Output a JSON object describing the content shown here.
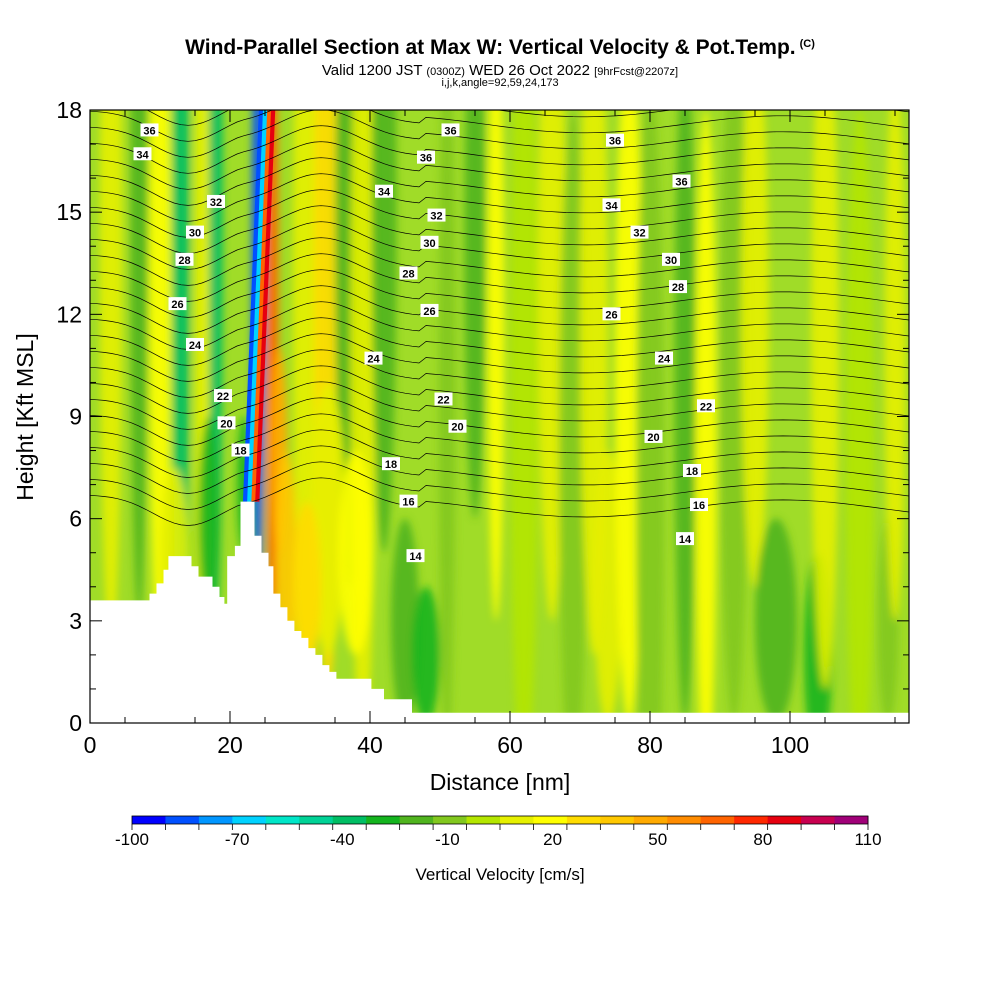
{
  "titles": {
    "main": "Wind-Parallel Section at Max W: Vertical Velocity & Pot.Temp.",
    "main_units": "(C)",
    "valid_prefix": "Valid 1200 JST",
    "valid_utc": "(0300Z)",
    "valid_date": "WED 26 Oct 2022",
    "forecast": "[9hrFcst@2207z]",
    "indices": "i,j,k,angle=92,59,24,173"
  },
  "chart_data": {
    "type": "heatmap",
    "xlabel": "Distance [nm]",
    "ylabel": "Height [Kft MSL]",
    "xlim": [
      0,
      117
    ],
    "ylim": [
      0,
      18
    ],
    "x_ticks": [
      0,
      20,
      40,
      60,
      80,
      100
    ],
    "y_ticks": [
      0,
      3,
      6,
      9,
      12,
      15,
      18
    ],
    "colorbar": {
      "label": "Vertical Velocity [cm/s]",
      "min": -100,
      "max": 110,
      "step": 10,
      "tick_labels": [
        -100,
        -70,
        -40,
        -10,
        20,
        50,
        80,
        110
      ],
      "colors": [
        "#0000ff",
        "#0050ff",
        "#0096ff",
        "#00d2ff",
        "#00e6c8",
        "#00d296",
        "#00be64",
        "#14b41e",
        "#50b41e",
        "#82c81e",
        "#b4e600",
        "#e6f000",
        "#ffff00",
        "#ffdc00",
        "#ffc800",
        "#ffaa00",
        "#ff8c00",
        "#ff6400",
        "#ff2800",
        "#e6000f",
        "#c80050",
        "#a00078"
      ]
    },
    "background_color": "#a0dc28",
    "terrain": [
      [
        0,
        3.6
      ],
      [
        8.5,
        3.6
      ],
      [
        8.5,
        3.8
      ],
      [
        9.5,
        3.8
      ],
      [
        9.5,
        4.1
      ],
      [
        10.5,
        4.1
      ],
      [
        10.5,
        4.5
      ],
      [
        11.2,
        4.5
      ],
      [
        11.2,
        4.9
      ],
      [
        14.5,
        4.9
      ],
      [
        14.5,
        4.6
      ],
      [
        15.5,
        4.6
      ],
      [
        15.5,
        4.3
      ],
      [
        17.5,
        4.3
      ],
      [
        17.5,
        4.0
      ],
      [
        18.5,
        4.0
      ],
      [
        18.5,
        3.7
      ],
      [
        19.2,
        3.7
      ],
      [
        19.2,
        3.5
      ],
      [
        19.6,
        3.5
      ],
      [
        19.6,
        4.9
      ],
      [
        20.7,
        4.9
      ],
      [
        20.7,
        5.2
      ],
      [
        21.5,
        5.2
      ],
      [
        21.5,
        6.5
      ],
      [
        23.5,
        6.5
      ],
      [
        23.5,
        5.5
      ],
      [
        24.5,
        5.5
      ],
      [
        24.5,
        5.0
      ],
      [
        25.5,
        5.0
      ],
      [
        25.5,
        4.6
      ],
      [
        26.2,
        4.6
      ],
      [
        26.2,
        3.8
      ],
      [
        27.2,
        3.8
      ],
      [
        27.2,
        3.4
      ],
      [
        28.2,
        3.4
      ],
      [
        28.2,
        3.0
      ],
      [
        29.2,
        3.0
      ],
      [
        29.2,
        2.7
      ],
      [
        30.2,
        2.7
      ],
      [
        30.2,
        2.5
      ],
      [
        31.2,
        2.5
      ],
      [
        31.2,
        2.2
      ],
      [
        32.2,
        2.2
      ],
      [
        32.2,
        2.0
      ],
      [
        33.2,
        2.0
      ],
      [
        33.2,
        1.7
      ],
      [
        34.2,
        1.7
      ],
      [
        34.2,
        1.5
      ],
      [
        35.2,
        1.5
      ],
      [
        35.2,
        1.3
      ],
      [
        40.2,
        1.3
      ],
      [
        40.2,
        1.0
      ],
      [
        42,
        1.0
      ],
      [
        42,
        0.7
      ],
      [
        46,
        0.7
      ],
      [
        46,
        0.3
      ],
      [
        117,
        0.3
      ],
      [
        117,
        0
      ],
      [
        0,
        0
      ]
    ],
    "theta_contour_labels": [
      {
        "x": 8.5,
        "y": 17.4,
        "label": "36"
      },
      {
        "x": 7.5,
        "y": 16.7,
        "label": "34"
      },
      {
        "x": 18,
        "y": 15.3,
        "label": "32"
      },
      {
        "x": 15,
        "y": 14.4,
        "label": "30"
      },
      {
        "x": 13.5,
        "y": 13.6,
        "label": "28"
      },
      {
        "x": 12.5,
        "y": 12.3,
        "label": "26"
      },
      {
        "x": 15,
        "y": 11.1,
        "label": "24"
      },
      {
        "x": 19,
        "y": 9.6,
        "label": "22"
      },
      {
        "x": 19.5,
        "y": 8.8,
        "label": "20"
      },
      {
        "x": 21.5,
        "y": 8.0,
        "label": "18"
      },
      {
        "x": 51.5,
        "y": 17.4,
        "label": "36"
      },
      {
        "x": 48,
        "y": 16.6,
        "label": "36"
      },
      {
        "x": 42,
        "y": 15.6,
        "label": "34"
      },
      {
        "x": 49.5,
        "y": 14.9,
        "label": "32"
      },
      {
        "x": 48.5,
        "y": 14.1,
        "label": "30"
      },
      {
        "x": 45.5,
        "y": 13.2,
        "label": "28"
      },
      {
        "x": 48.5,
        "y": 12.1,
        "label": "26"
      },
      {
        "x": 40.5,
        "y": 10.7,
        "label": "24"
      },
      {
        "x": 50.5,
        "y": 9.5,
        "label": "22"
      },
      {
        "x": 52.5,
        "y": 8.7,
        "label": "20"
      },
      {
        "x": 43,
        "y": 7.6,
        "label": "18"
      },
      {
        "x": 45.5,
        "y": 6.5,
        "label": "16"
      },
      {
        "x": 46.5,
        "y": 4.9,
        "label": "14"
      },
      {
        "x": 75,
        "y": 17.1,
        "label": "36"
      },
      {
        "x": 84.5,
        "y": 15.9,
        "label": "36"
      },
      {
        "x": 74.5,
        "y": 15.2,
        "label": "34"
      },
      {
        "x": 78.5,
        "y": 14.4,
        "label": "32"
      },
      {
        "x": 83,
        "y": 13.6,
        "label": "30"
      },
      {
        "x": 84,
        "y": 12.8,
        "label": "28"
      },
      {
        "x": 74.5,
        "y": 12.0,
        "label": "26"
      },
      {
        "x": 82,
        "y": 10.7,
        "label": "24"
      },
      {
        "x": 88,
        "y": 9.3,
        "label": "22"
      },
      {
        "x": 80.5,
        "y": 8.4,
        "label": "20"
      },
      {
        "x": 86,
        "y": 7.4,
        "label": "18"
      },
      {
        "x": 87,
        "y": 6.4,
        "label": "16"
      },
      {
        "x": 85,
        "y": 5.4,
        "label": "14"
      }
    ]
  }
}
